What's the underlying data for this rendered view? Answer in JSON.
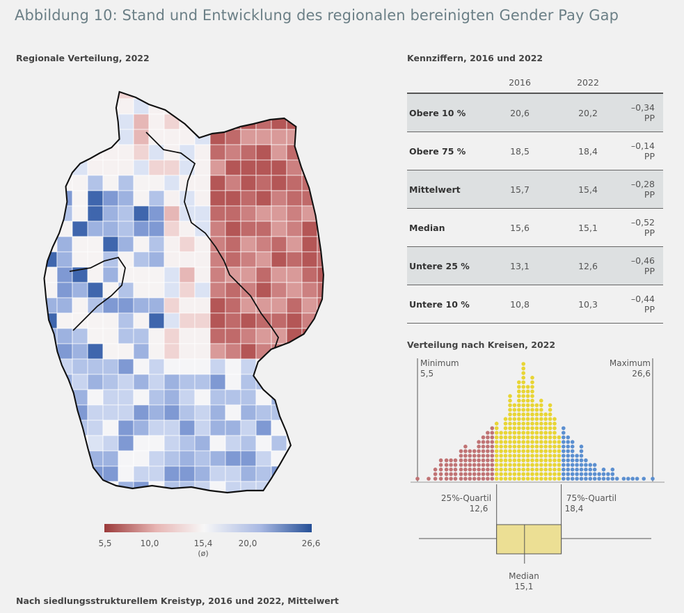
{
  "title": "Abbildung 10: Stand und Entwicklung des regionalen bereinigten Gender Pay Gap",
  "map_section": {
    "label": "Regionale Verteilung, 2022",
    "legend": {
      "ticks": [
        "5,5",
        "10,0",
        "15,4",
        "20,0",
        "26,6"
      ],
      "mean_note": "(ø)",
      "colors": [
        "#9b3a3a",
        "#e7b5b3",
        "#f7f7f7",
        "#a9b9e3",
        "#254f96"
      ]
    }
  },
  "table_section": {
    "label": "Kennziffern, 2016 und 2022",
    "headers": [
      "",
      "2016",
      "2022",
      ""
    ],
    "rows": [
      {
        "label": "Obere 10 %",
        "v2016": "20,6",
        "v2022": "20,2",
        "change": "–0,34 PP"
      },
      {
        "label": "Obere 75 %",
        "v2016": "18,5",
        "v2022": "18,4",
        "change": "–0,14 PP"
      },
      {
        "label": "Mittelwert",
        "v2016": "15,7",
        "v2022": "15,4",
        "change": "–0,28 PP"
      },
      {
        "label": "Median",
        "v2016": "15,6",
        "v2022": "15,1",
        "change": "–0,52 PP"
      },
      {
        "label": "Untere 25 %",
        "v2016": "13,1",
        "v2022": "12,6",
        "change": "–0,46 PP"
      },
      {
        "label": "Untere 10 %",
        "v2016": "10,8",
        "v2022": "10,3",
        "change": "–0,44 PP"
      }
    ]
  },
  "distribution_section": {
    "label": "Verteilung nach Kreisen, 2022",
    "minimum_label": "Minimum",
    "minimum_value": "5,5",
    "maximum_label": "Maximum",
    "maximum_value": "26,6",
    "q1_label": "25%-Quartil",
    "q1_value": "12,6",
    "q3_label": "75%-Quartil",
    "q3_value": "18,4",
    "median_label": "Median",
    "median_value": "15,1",
    "colors": {
      "low": "#c07374",
      "mid": "#e8d535",
      "high": "#5b8fd0",
      "box": "#ecdf94"
    }
  },
  "chart_data": {
    "type": "scatter",
    "title": "Verteilung nach Kreisen, 2022",
    "xlim": [
      5.5,
      26.6
    ],
    "quartiles": {
      "min": 5.5,
      "q1": 12.6,
      "median": 15.1,
      "q3": 18.4,
      "max": 26.6
    },
    "bins_x": [
      5.5,
      6.5,
      7.1,
      7.6,
      8.1,
      8.5,
      8.9,
      9.4,
      9.8,
      10.2,
      10.6,
      11.0,
      11.4,
      11.8,
      12.2,
      12.6,
      13.0,
      13.4,
      13.8,
      14.2,
      14.6,
      15.0,
      15.4,
      15.8,
      16.2,
      16.6,
      17.0,
      17.4,
      17.8,
      18.2,
      18.6,
      19.0,
      19.4,
      19.8,
      20.2,
      20.6,
      21.0,
      21.4,
      21.8,
      22.2,
      22.6,
      23.0,
      23.4,
      24.0,
      24.4,
      24.8,
      25.2,
      25.8,
      26.6
    ],
    "bins_count": [
      1,
      1,
      3,
      5,
      5,
      5,
      5,
      7,
      8,
      7,
      7,
      9,
      10,
      11,
      12,
      13,
      11,
      14,
      19,
      17,
      22,
      26,
      21,
      23,
      17,
      18,
      15,
      17,
      14,
      10,
      12,
      10,
      9,
      6,
      8,
      5,
      4,
      4,
      2,
      3,
      2,
      3,
      1,
      1,
      1,
      1,
      1,
      1,
      1
    ]
  }
}
